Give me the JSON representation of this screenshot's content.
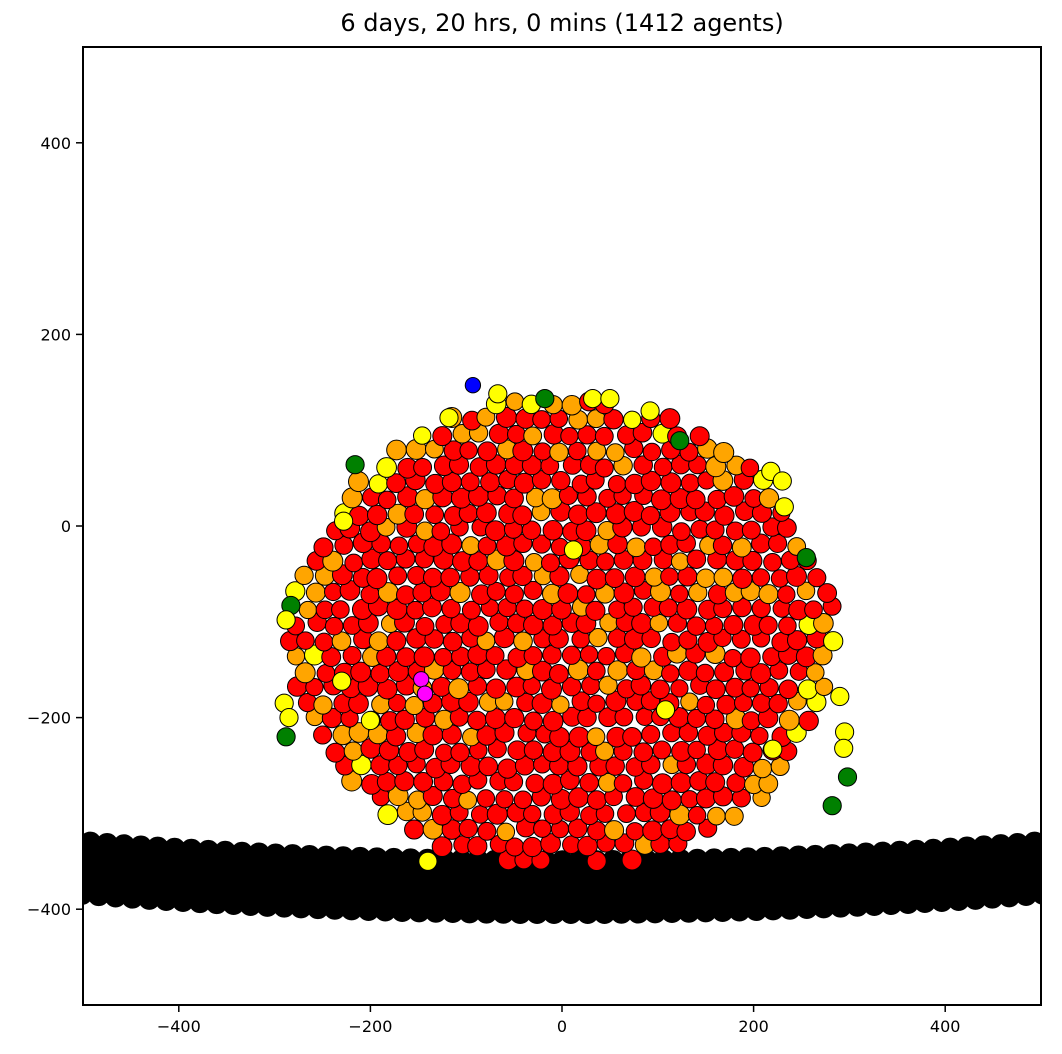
{
  "chart_data": {
    "type": "scatter",
    "title": "6 days, 20 hrs, 0 mins (1412 agents)",
    "xlabel": "",
    "ylabel": "",
    "xlim": [
      -500,
      500
    ],
    "ylim": [
      -500,
      500
    ],
    "xticks": [
      -400,
      -200,
      0,
      200,
      400
    ],
    "yticks": [
      -400,
      -200,
      0,
      200,
      400
    ],
    "xtick_labels": [
      "−400",
      "−200",
      "0",
      "200",
      "400"
    ],
    "ytick_labels": [
      "−400",
      "−200",
      "0",
      "200",
      "400"
    ],
    "grid": false,
    "legend": "none",
    "colors": {
      "red": "#ff0000",
      "orange": "#ffa500",
      "yellow": "#ffff00",
      "green": "#008000",
      "blue": "#0000ff",
      "magenta": "#ff00ff",
      "black": "#000000",
      "edge": "#000000"
    },
    "colony": {
      "description_values": "agent cell colony",
      "center": [
        0,
        -120
      ],
      "radius_x": 285,
      "radius_y_top": 255,
      "bottom_y": -350,
      "cell_radius": 10,
      "agent_count": 1412
    },
    "substrate": {
      "x_range": [
        -500,
        500
      ],
      "y_top_edges": -330,
      "y_top_center": -350,
      "rows": 4,
      "row_spacing": 18,
      "cell_radius": 11
    },
    "special_points": [
      {
        "color": "blue",
        "x": -93,
        "y": 147
      },
      {
        "color": "magenta",
        "x": -147,
        "y": -160
      },
      {
        "color": "magenta",
        "x": -143,
        "y": -175
      },
      {
        "color": "green",
        "x": -18,
        "y": 133
      },
      {
        "color": "green",
        "x": 123,
        "y": 89
      },
      {
        "color": "green",
        "x": -216,
        "y": 64
      },
      {
        "color": "green",
        "x": 255,
        "y": -33
      },
      {
        "color": "green",
        "x": -283,
        "y": -83
      },
      {
        "color": "green",
        "x": -288,
        "y": -220
      },
      {
        "color": "green",
        "x": 298,
        "y": -262
      },
      {
        "color": "green",
        "x": 282,
        "y": -292
      },
      {
        "color": "yellow",
        "x": 32,
        "y": 133
      },
      {
        "color": "yellow",
        "x": 50,
        "y": 133
      },
      {
        "color": "yellow",
        "x": 92,
        "y": 120
      },
      {
        "color": "yellow",
        "x": -118,
        "y": 113
      },
      {
        "color": "yellow",
        "x": -67,
        "y": 138
      },
      {
        "color": "yellow",
        "x": 218,
        "y": 57
      },
      {
        "color": "yellow",
        "x": 230,
        "y": 47
      },
      {
        "color": "yellow",
        "x": 232,
        "y": 20
      },
      {
        "color": "yellow",
        "x": -228,
        "y": 5
      },
      {
        "color": "yellow",
        "x": -288,
        "y": -98
      },
      {
        "color": "yellow",
        "x": -290,
        "y": -185
      },
      {
        "color": "yellow",
        "x": -285,
        "y": -200
      },
      {
        "color": "yellow",
        "x": 295,
        "y": -215
      },
      {
        "color": "yellow",
        "x": 294,
        "y": -232
      },
      {
        "color": "yellow",
        "x": 290,
        "y": -178
      },
      {
        "color": "yellow",
        "x": -200,
        "y": -203
      },
      {
        "color": "yellow",
        "x": 220,
        "y": -233
      },
      {
        "color": "yellow",
        "x": -140,
        "y": -350
      },
      {
        "color": "yellow",
        "x": 12,
        "y": -25
      },
      {
        "color": "yellow",
        "x": 108,
        "y": -192
      },
      {
        "color": "yellow",
        "x": -230,
        "y": -162
      }
    ]
  }
}
